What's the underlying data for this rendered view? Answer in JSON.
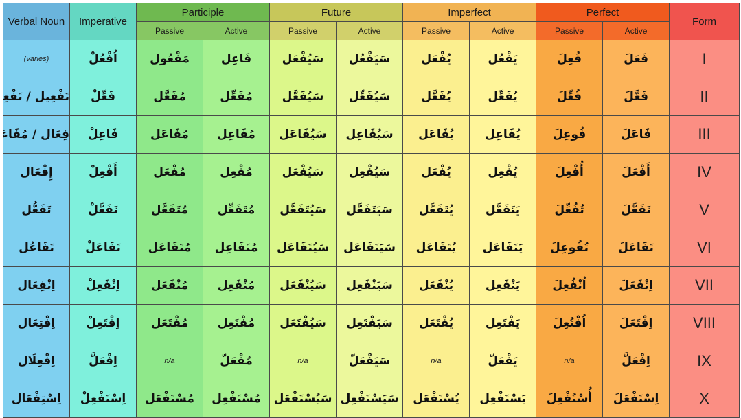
{
  "headers": {
    "verbal_noun": "Verbal Noun",
    "imperative": "Imperative",
    "participle": "Participle",
    "future": "Future",
    "imperfect": "Imperfect",
    "perfect": "Perfect",
    "form": "Form",
    "passive": "Passive",
    "active": "Active"
  },
  "rows": [
    {
      "verbal_noun": "(varies)",
      "imperative": "اُفْعُلْ",
      "participle_passive": "مَفْعُول",
      "participle_active": "فَاعِل",
      "future_passive": "سَيُفْعَل",
      "future_active": "سَيَفْعُل",
      "imperfect_passive": "يُفْعَل",
      "imperfect_active": "يَفْعُل",
      "perfect_passive": "فُعِلَ",
      "perfect_active": "فَعَلَ",
      "form": "I"
    },
    {
      "verbal_noun": "تَفْعِيل / تَفْعِلَة",
      "imperative": "فَعِّلْ",
      "participle_passive": "مُفَعَّل",
      "participle_active": "مُفَعِّل",
      "future_passive": "سَيُفَعَّل",
      "future_active": "سَيُفَعِّل",
      "imperfect_passive": "يُفَعَّل",
      "imperfect_active": "يُفَعِّل",
      "perfect_passive": "فُعِّلَ",
      "perfect_active": "فَعَّلَ",
      "form": "II"
    },
    {
      "verbal_noun": "فِعَال / مُفَاعَلَة",
      "imperative": "فَاعِلْ",
      "participle_passive": "مُفَاعَل",
      "participle_active": "مُفَاعِل",
      "future_passive": "سَيُفَاعَل",
      "future_active": "سَيُفَاعِل",
      "imperfect_passive": "يُفَاعَل",
      "imperfect_active": "يُفَاعِل",
      "perfect_passive": "فُوعِلَ",
      "perfect_active": "فَاعَلَ",
      "form": "III"
    },
    {
      "verbal_noun": "إِفْعَال",
      "imperative": "أَفْعِلْ",
      "participle_passive": "مُفْعَل",
      "participle_active": "مُفْعِل",
      "future_passive": "سَيُفْعَل",
      "future_active": "سَيُفْعِل",
      "imperfect_passive": "يُفْعَل",
      "imperfect_active": "يُفْعِل",
      "perfect_passive": "أُفْعِلَ",
      "perfect_active": "أَفْعَلَ",
      "form": "IV"
    },
    {
      "verbal_noun": "تَفَعُّل",
      "imperative": "تَفَعَّلْ",
      "participle_passive": "مُتَفَعَّل",
      "participle_active": "مُتَفَعِّل",
      "future_passive": "سَيُتَفَعَّل",
      "future_active": "سَيَتَفَعَّل",
      "imperfect_passive": "يُتَفَعَّل",
      "imperfect_active": "يَتَفَعَّل",
      "perfect_passive": "تُفُعِّلَ",
      "perfect_active": "تَفَعَّلَ",
      "form": "V"
    },
    {
      "verbal_noun": "تَفَاعُل",
      "imperative": "تَفَاعَلْ",
      "participle_passive": "مُتَفَاعَل",
      "participle_active": "مُتَفَاعِل",
      "future_passive": "سَيُتَفَاعَل",
      "future_active": "سَيَتَفَاعَل",
      "imperfect_passive": "يُتَفَاعَل",
      "imperfect_active": "يَتَفَاعَل",
      "perfect_passive": "تُفُوعِلَ",
      "perfect_active": "تَفَاعَلَ",
      "form": "VI"
    },
    {
      "verbal_noun": "اِنْفِعَال",
      "imperative": "اِنْفَعِلْ",
      "participle_passive": "مُنْفَعَل",
      "participle_active": "مُنْفَعِل",
      "future_passive": "سَيُنْفَعَل",
      "future_active": "سَيَنْفَعِل",
      "imperfect_passive": "يُنْفَعَل",
      "imperfect_active": "يَنْفَعِل",
      "perfect_passive": "اُنْفُعِلَ",
      "perfect_active": "اِنْفَعَلَ",
      "form": "VII"
    },
    {
      "verbal_noun": "اِفْتِعَال",
      "imperative": "اِفْتَعِلْ",
      "participle_passive": "مُفْتَعَل",
      "participle_active": "مُفْتَعِل",
      "future_passive": "سَيُفْتَعَل",
      "future_active": "سَيَفْتَعِل",
      "imperfect_passive": "يُفْتَعَل",
      "imperfect_active": "يَفْتَعِل",
      "perfect_passive": "اُفْتُعِلَ",
      "perfect_active": "اِفْتَعَلَ",
      "form": "VIII"
    },
    {
      "verbal_noun": "اِفْعِلَال",
      "imperative": "اِفْعَلَّ",
      "participle_passive": "n/a",
      "participle_active": "مُفْعَلّ",
      "future_passive": "n/a",
      "future_active": "سَيَفْعَلّ",
      "imperfect_passive": "n/a",
      "imperfect_active": "يَفْعَلّ",
      "perfect_passive": "n/a",
      "perfect_active": "اِفْعَلَّ",
      "form": "IX"
    },
    {
      "verbal_noun": "اِسْتِفْعَال",
      "imperative": "اِسْتَفْعِلْ",
      "participle_passive": "مُسْتَفْعَل",
      "participle_active": "مُسْتَفْعِل",
      "future_passive": "سَيُسْتَفْعَل",
      "future_active": "سَيَسْتَفْعِل",
      "imperfect_passive": "يُسْتَفْعَل",
      "imperfect_active": "يَسْتَفْعِل",
      "perfect_passive": "أُسْتُفْعِلَ",
      "perfect_active": "اِسْتَفْعَلَ",
      "form": "X"
    }
  ]
}
